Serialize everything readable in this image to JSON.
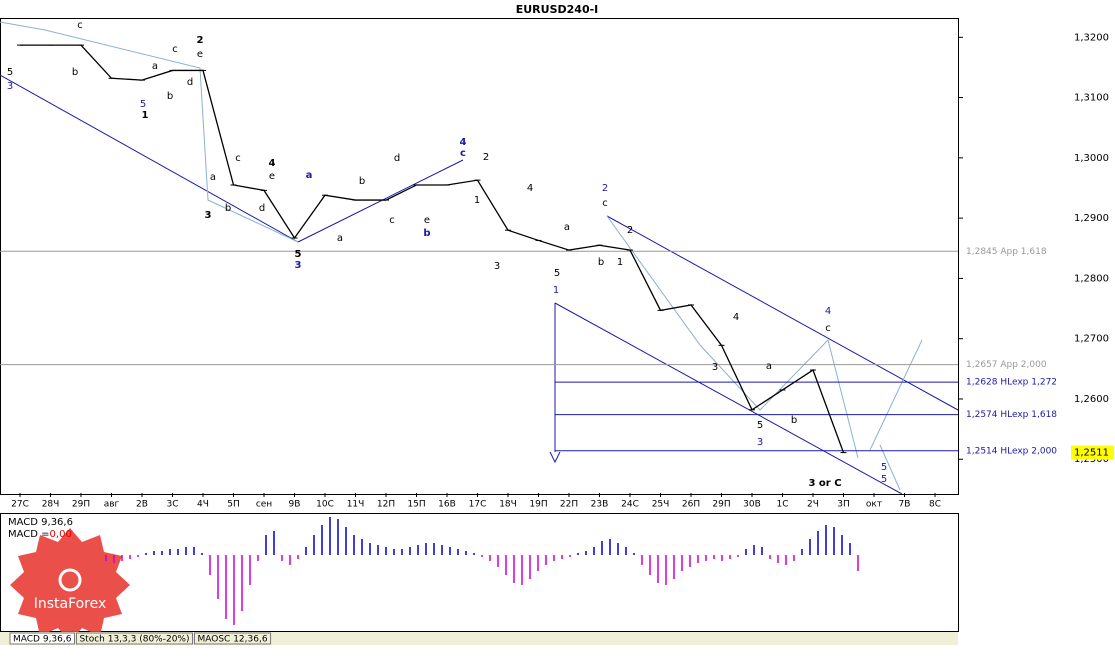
{
  "chart_data": {
    "type": "line",
    "title": "EURUSD240-I",
    "categories": [
      "27С",
      "28Ч",
      "29П",
      "авг",
      "2В",
      "3С",
      "4Ч",
      "5П",
      "сен",
      "9В",
      "10С",
      "11Ч",
      "12П",
      "15П",
      "16В",
      "17С",
      "18Ч",
      "19П",
      "22П",
      "23В",
      "24С",
      "25Ч",
      "26П",
      "29П",
      "30В",
      "1С",
      "2Ч",
      "3П",
      "окт",
      "7В",
      "8С"
    ],
    "series": [
      {
        "name": "EURUSD240-I",
        "color": "#000000",
        "values": [
          1.3187,
          1.3187,
          1.3187,
          1.3132,
          1.3129,
          1.3145,
          1.3145,
          1.2955,
          1.2946,
          1.2867,
          1.2938,
          1.293,
          1.293,
          1.2955,
          1.2955,
          1.2963,
          1.288,
          1.2863,
          1.2847,
          1.2855,
          1.2847,
          1.2747,
          1.2756,
          1.2689,
          1.2582,
          1.2615,
          1.2648,
          1.2511,
          null,
          null,
          null
        ]
      }
    ],
    "ylim": [
      1.2444,
      1.3232
    ],
    "yticks": [
      {
        "value": 1.32,
        "label": "1,3200"
      },
      {
        "value": 1.31,
        "label": "1,3100"
      },
      {
        "value": 1.3,
        "label": "1,3000"
      },
      {
        "value": 1.29,
        "label": "1,2900"
      },
      {
        "value": 1.28,
        "label": "1,2800"
      },
      {
        "value": 1.27,
        "label": "1,2700"
      },
      {
        "value": 1.26,
        "label": "1,2600"
      },
      {
        "value": 1.25,
        "label": "1,2500"
      }
    ],
    "levels": [
      {
        "value": 1.2845,
        "label": "1,2845 App 1,618",
        "color": "#999999"
      },
      {
        "value": 1.2657,
        "label": "1,2657 App 2,000",
        "color": "#999999"
      },
      {
        "value": 1.2628,
        "label": "1,2628 HLexp 1,272",
        "color": "#1a1aa6"
      },
      {
        "value": 1.2574,
        "label": "1,2574 HLexp 1,618",
        "color": "#1a1aa6"
      },
      {
        "value": 1.2514,
        "label": "1,2514 HLexp 2,000",
        "color": "#1a1aa6"
      }
    ],
    "current_price": {
      "value": 1.2511,
      "label": "1,2511"
    },
    "annotations": [
      {
        "text": "5",
        "color": "#000"
      },
      {
        "text": "3",
        "color": "#1a1aa6"
      },
      {
        "text": "c",
        "color": "#000"
      },
      {
        "text": "b",
        "color": "#000"
      },
      {
        "text": "a",
        "color": "#000"
      },
      {
        "text": "b",
        "color": "#000"
      },
      {
        "text": "c",
        "color": "#000"
      },
      {
        "text": "d",
        "color": "#000"
      },
      {
        "text": "2",
        "color": "#000"
      },
      {
        "text": "e",
        "color": "#000"
      },
      {
        "text": "5",
        "color": "#1a1aa6"
      },
      {
        "text": "1",
        "color": "#000"
      },
      {
        "text": "c",
        "color": "#000"
      },
      {
        "text": "a",
        "color": "#000"
      },
      {
        "text": "4",
        "color": "#000"
      },
      {
        "text": "e",
        "color": "#000"
      },
      {
        "text": "b",
        "color": "#000"
      },
      {
        "text": "d",
        "color": "#000"
      },
      {
        "text": "3",
        "color": "#000"
      },
      {
        "text": "5",
        "color": "#000"
      },
      {
        "text": "3",
        "color": "#1a1aa6"
      },
      {
        "text": "a",
        "color": "#1a1aa6"
      },
      {
        "text": "a",
        "color": "#000"
      },
      {
        "text": "b",
        "color": "#000"
      },
      {
        "text": "c",
        "color": "#000"
      },
      {
        "text": "d",
        "color": "#000"
      },
      {
        "text": "e",
        "color": "#000"
      },
      {
        "text": "b",
        "color": "#1a1aa6"
      },
      {
        "text": "4",
        "color": "#1a1aa6"
      },
      {
        "text": "c",
        "color": "#1a1aa6"
      },
      {
        "text": "2",
        "color": "#000"
      },
      {
        "text": "1",
        "color": "#000"
      },
      {
        "text": "4",
        "color": "#000"
      },
      {
        "text": "3",
        "color": "#000"
      },
      {
        "text": "a",
        "color": "#000"
      },
      {
        "text": "5",
        "color": "#000"
      },
      {
        "text": "1",
        "color": "#1a1aa6"
      },
      {
        "text": "2",
        "color": "#1a1aa6"
      },
      {
        "text": "c",
        "color": "#000"
      },
      {
        "text": "2",
        "color": "#000"
      },
      {
        "text": "b",
        "color": "#000"
      },
      {
        "text": "1",
        "color": "#000"
      },
      {
        "text": "4",
        "color": "#000"
      },
      {
        "text": "3",
        "color": "#000"
      },
      {
        "text": "a",
        "color": "#000"
      },
      {
        "text": "b",
        "color": "#000"
      },
      {
        "text": "5",
        "color": "#000"
      },
      {
        "text": "3",
        "color": "#1a1aa6"
      },
      {
        "text": "4",
        "color": "#1a1aa6"
      },
      {
        "text": "c",
        "color": "#000"
      },
      {
        "text": "3 or C",
        "color": "#000"
      },
      {
        "text": "5",
        "color": "#1a1aa6"
      },
      {
        "text": "5",
        "color": "#1a1aa6"
      }
    ],
    "macd": {
      "title": "MACD 9,36,6",
      "value_prefix": "MACD =",
      "value": {
        "value": 0,
        "label": "0,00"
      },
      "ylim": [
        -0.0035,
        0.002
      ],
      "positive_color": "#0000cc",
      "negative_color": "#cc00cc",
      "values": [
        -0.0003,
        -0.0004,
        -0.0003,
        -0.0002,
        -0.0001,
        0.0001,
        0.0002,
        0.0002,
        0.0003,
        0.0003,
        0.0004,
        0.0004,
        0.0001,
        -0.001,
        -0.0022,
        -0.0032,
        -0.0035,
        -0.0028,
        -0.0015,
        -0.0003,
        0.001,
        0.0012,
        -0.0003,
        -0.0005,
        -0.0002,
        0.0004,
        0.001,
        0.0015,
        0.0019,
        0.0018,
        0.0014,
        0.001,
        0.0008,
        0.0006,
        0.0005,
        0.0004,
        0.0003,
        0.0003,
        0.0004,
        0.0005,
        0.0006,
        0.0006,
        0.0005,
        0.0004,
        0.0003,
        0.0002,
        0.0001,
        -0.0001,
        -0.0003,
        -0.0006,
        -0.001,
        -0.0014,
        -0.0015,
        -0.0012,
        -0.0008,
        -0.0005,
        -0.0003,
        -0.0002,
        -0.0001,
        0.0001,
        0.0002,
        0.0004,
        0.0007,
        0.0008,
        0.0006,
        0.0004,
        0.0001,
        -0.0005,
        -0.001,
        -0.0014,
        -0.0015,
        -0.0012,
        -0.0008,
        -0.0006,
        -0.0004,
        -0.0003,
        -0.0002,
        -0.0003,
        -0.0002,
        -0.0001,
        0.0003,
        0.0005,
        0.0004,
        -0.0002,
        -0.0004,
        -0.0005,
        -0.0003,
        0.0003,
        0.0008,
        0.0012,
        0.0015,
        0.0014,
        0.001,
        0.0006,
        -0.0008
      ]
    },
    "tabs": [
      "MACD 9,36,6",
      "Stoch 13,3,3 (80%-20%)",
      "MAOSC 12,36,6"
    ],
    "logo": "InstaForex"
  }
}
